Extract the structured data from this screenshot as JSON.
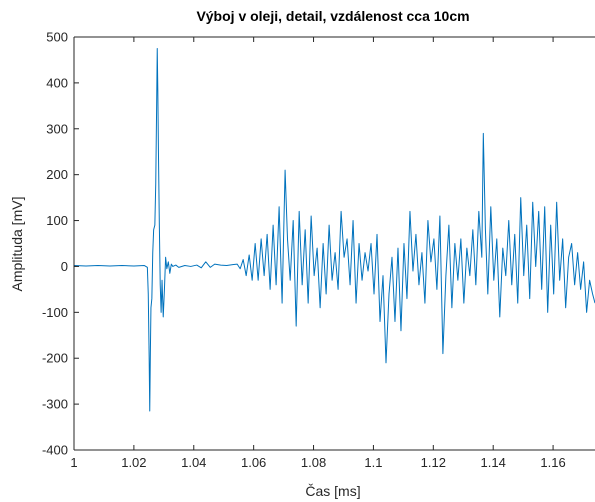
{
  "chart_data": {
    "type": "line",
    "title": "Výboj v oleji, detail, vzdálenost cca 10cm",
    "xlabel": "Čas [ms]",
    "ylabel": "Amplituda [mV]",
    "xlim": [
      1.0,
      1.174
    ],
    "ylim": [
      -400,
      500
    ],
    "x_ticks": [
      1,
      1.02,
      1.04,
      1.06,
      1.08,
      1.1,
      1.12,
      1.14,
      1.16
    ],
    "x_tick_labels": [
      "1",
      "1.02",
      "1.04",
      "1.06",
      "1.08",
      "1.1",
      "1.12",
      "1.14",
      "1.16"
    ],
    "y_ticks": [
      -400,
      -300,
      -200,
      -100,
      0,
      100,
      200,
      300,
      400,
      500
    ],
    "y_tick_labels": [
      "-400",
      "-300",
      "-200",
      "-100",
      "0",
      "100",
      "200",
      "300",
      "400",
      "500"
    ],
    "grid": false,
    "series": [
      {
        "color": "#0072BD",
        "points": [
          [
            1.0,
            2
          ],
          [
            1.004,
            1
          ],
          [
            1.008,
            2
          ],
          [
            1.012,
            1
          ],
          [
            1.016,
            2
          ],
          [
            1.02,
            1
          ],
          [
            1.0235,
            2
          ],
          [
            1.0245,
            -2
          ],
          [
            1.0248,
            -60
          ],
          [
            1.0251,
            -200
          ],
          [
            1.0253,
            -315
          ],
          [
            1.0255,
            -190
          ],
          [
            1.0257,
            -90
          ],
          [
            1.026,
            -70
          ],
          [
            1.0263,
            30
          ],
          [
            1.0266,
            80
          ],
          [
            1.027,
            90
          ],
          [
            1.0273,
            180
          ],
          [
            1.0276,
            350
          ],
          [
            1.0278,
            475
          ],
          [
            1.028,
            380
          ],
          [
            1.0282,
            250
          ],
          [
            1.0285,
            90
          ],
          [
            1.0288,
            -40
          ],
          [
            1.0291,
            -100
          ],
          [
            1.0294,
            -30
          ],
          [
            1.0298,
            -110
          ],
          [
            1.0302,
            -50
          ],
          [
            1.0306,
            20
          ],
          [
            1.031,
            -5
          ],
          [
            1.0315,
            10
          ],
          [
            1.032,
            -15
          ],
          [
            1.0325,
            5
          ],
          [
            1.033,
            0
          ],
          [
            1.034,
            3
          ],
          [
            1.035,
            -2
          ],
          [
            1.037,
            2
          ],
          [
            1.039,
            0
          ],
          [
            1.041,
            3
          ],
          [
            1.0425,
            -3
          ],
          [
            1.044,
            10
          ],
          [
            1.0455,
            -2
          ],
          [
            1.047,
            5
          ],
          [
            1.049,
            3
          ],
          [
            1.051,
            2
          ],
          [
            1.053,
            4
          ],
          [
            1.0545,
            5
          ],
          [
            1.0555,
            -5
          ],
          [
            1.0565,
            15
          ],
          [
            1.0575,
            -20
          ],
          [
            1.0585,
            25
          ],
          [
            1.0595,
            -30
          ],
          [
            1.0605,
            50
          ],
          [
            1.0615,
            -30
          ],
          [
            1.0625,
            60
          ],
          [
            1.0635,
            -20
          ],
          [
            1.0645,
            70
          ],
          [
            1.0655,
            -50
          ],
          [
            1.0665,
            90
          ],
          [
            1.0675,
            -40
          ],
          [
            1.0685,
            130
          ],
          [
            1.0695,
            -80
          ],
          [
            1.0705,
            210
          ],
          [
            1.0713,
            60
          ],
          [
            1.0722,
            -30
          ],
          [
            1.0732,
            100
          ],
          [
            1.0742,
            -130
          ],
          [
            1.0752,
            120
          ],
          [
            1.0762,
            -40
          ],
          [
            1.0772,
            80
          ],
          [
            1.0782,
            -80
          ],
          [
            1.0792,
            110
          ],
          [
            1.0802,
            -20
          ],
          [
            1.0812,
            40
          ],
          [
            1.0822,
            -90
          ],
          [
            1.0832,
            50
          ],
          [
            1.0842,
            -60
          ],
          [
            1.0852,
            90
          ],
          [
            1.0862,
            -30
          ],
          [
            1.0872,
            30
          ],
          [
            1.0882,
            -50
          ],
          [
            1.0892,
            120
          ],
          [
            1.0902,
            20
          ],
          [
            1.0912,
            60
          ],
          [
            1.0922,
            -40
          ],
          [
            1.0932,
            100
          ],
          [
            1.0942,
            -80
          ],
          [
            1.0952,
            50
          ],
          [
            1.0962,
            -30
          ],
          [
            1.0972,
            30
          ],
          [
            1.0982,
            -10
          ],
          [
            1.0992,
            50
          ],
          [
            1.1002,
            -60
          ],
          [
            1.1012,
            70
          ],
          [
            1.1022,
            -120
          ],
          [
            1.1032,
            -20
          ],
          [
            1.1042,
            -210
          ],
          [
            1.1052,
            -60
          ],
          [
            1.1062,
            20
          ],
          [
            1.1072,
            -120
          ],
          [
            1.1082,
            40
          ],
          [
            1.1092,
            -140
          ],
          [
            1.1102,
            50
          ],
          [
            1.1112,
            -70
          ],
          [
            1.1122,
            120
          ],
          [
            1.1132,
            -10
          ],
          [
            1.1142,
            70
          ],
          [
            1.1152,
            -40
          ],
          [
            1.1162,
            30
          ],
          [
            1.1172,
            -80
          ],
          [
            1.1182,
            100
          ],
          [
            1.1192,
            10
          ],
          [
            1.1202,
            60
          ],
          [
            1.1212,
            -50
          ],
          [
            1.1222,
            110
          ],
          [
            1.1232,
            -190
          ],
          [
            1.1242,
            -20
          ],
          [
            1.1252,
            90
          ],
          [
            1.1262,
            -90
          ],
          [
            1.1272,
            50
          ],
          [
            1.1282,
            -30
          ],
          [
            1.1292,
            60
          ],
          [
            1.1302,
            -80
          ],
          [
            1.1312,
            40
          ],
          [
            1.1322,
            -20
          ],
          [
            1.1332,
            80
          ],
          [
            1.1342,
            -40
          ],
          [
            1.1352,
            120
          ],
          [
            1.1362,
            20
          ],
          [
            1.1367,
            290
          ],
          [
            1.1374,
            80
          ],
          [
            1.1382,
            -60
          ],
          [
            1.1392,
            130
          ],
          [
            1.1402,
            -30
          ],
          [
            1.1412,
            60
          ],
          [
            1.1422,
            -110
          ],
          [
            1.1432,
            40
          ],
          [
            1.1442,
            -20
          ],
          [
            1.1452,
            100
          ],
          [
            1.1462,
            -40
          ],
          [
            1.1472,
            70
          ],
          [
            1.1482,
            -80
          ],
          [
            1.1492,
            150
          ],
          [
            1.1502,
            -20
          ],
          [
            1.1512,
            90
          ],
          [
            1.1522,
            -70
          ],
          [
            1.1532,
            140
          ],
          [
            1.1542,
            0
          ],
          [
            1.1552,
            120
          ],
          [
            1.1562,
            -50
          ],
          [
            1.1572,
            130
          ],
          [
            1.1582,
            -100
          ],
          [
            1.1592,
            90
          ],
          [
            1.1602,
            -60
          ],
          [
            1.1612,
            140
          ],
          [
            1.1622,
            -30
          ],
          [
            1.1632,
            60
          ],
          [
            1.1642,
            -90
          ],
          [
            1.1652,
            20
          ],
          [
            1.1662,
            50
          ],
          [
            1.1672,
            -40
          ],
          [
            1.1682,
            30
          ],
          [
            1.1692,
            -50
          ],
          [
            1.1702,
            10
          ],
          [
            1.1712,
            -100
          ],
          [
            1.1722,
            -30
          ],
          [
            1.1732,
            -60
          ],
          [
            1.174,
            -80
          ]
        ]
      }
    ]
  }
}
